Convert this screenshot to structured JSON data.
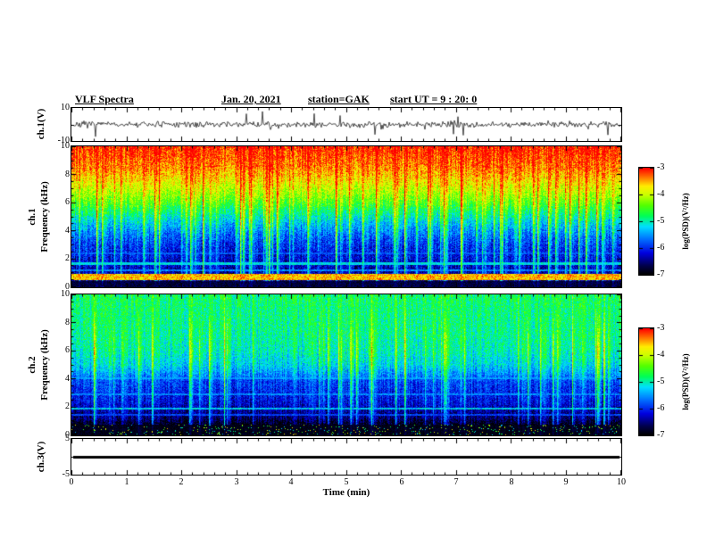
{
  "header": {
    "title": "VLF Spectra",
    "date": "Jan. 20, 2021",
    "station": "station=GAK",
    "start_ut": "start UT =  9 : 20: 0"
  },
  "xaxis": {
    "label": "Time (min)",
    "min": 0,
    "max": 10,
    "ticks": [
      0,
      1,
      2,
      3,
      4,
      5,
      6,
      7,
      8,
      9,
      10
    ],
    "minor_step": 0.2
  },
  "colormap": {
    "range": [
      -7,
      -3
    ],
    "stops": [
      [
        0.0,
        "#000000"
      ],
      [
        0.08,
        "#00004a"
      ],
      [
        0.2,
        "#0000e0"
      ],
      [
        0.33,
        "#0070ff"
      ],
      [
        0.45,
        "#00e0ff"
      ],
      [
        0.55,
        "#00ff55"
      ],
      [
        0.65,
        "#55ff00"
      ],
      [
        0.75,
        "#ccff00"
      ],
      [
        0.83,
        "#ffee00"
      ],
      [
        0.9,
        "#ff8800"
      ],
      [
        1.0,
        "#ff0000"
      ]
    ]
  },
  "colorbars": [
    {
      "label": "log(PSD)(V²/Hz)",
      "ticks": [
        -3,
        -4,
        -5,
        -6,
        -7
      ]
    },
    {
      "label": "log(PSD)(V²/Hz)",
      "ticks": [
        -3,
        -4,
        -5,
        -6,
        -7
      ]
    }
  ],
  "chart_data": [
    {
      "type": "line",
      "name": "ch1-waveform",
      "ylabel": "ch.1(V)",
      "ylim": [
        -10,
        10
      ],
      "yticks": [
        10,
        -10
      ],
      "xlim": [
        0,
        10
      ],
      "seed": 7,
      "amp": 1.6,
      "spike": 7,
      "spike_prob": 0.03,
      "description": "Noisy broadband time series around 0 V, ~±3 V with impulsive spikes"
    },
    {
      "type": "heatmap",
      "name": "ch1-spectrogram",
      "ylabel_lines": [
        "ch.1",
        "Frequency (kHz)"
      ],
      "ylim": [
        0,
        10
      ],
      "fmax": 10,
      "yticks": [
        10,
        8,
        6,
        4,
        2,
        0
      ],
      "xlim": [
        0,
        10
      ],
      "seed": 101,
      "noise": 0.8,
      "streak_prob": 0.12,
      "streak_max": 1.5,
      "streak_fade": 5,
      "profile": [
        [
          0,
          -6.8
        ],
        [
          0.4,
          -6.6
        ],
        [
          1.0,
          -6.4
        ],
        [
          1.5,
          -6.3
        ],
        [
          2,
          -6.2
        ],
        [
          3,
          -6.0
        ],
        [
          4,
          -5.6
        ],
        [
          4.8,
          -5.2
        ],
        [
          5.5,
          -4.8
        ],
        [
          6,
          -4.5
        ],
        [
          6.8,
          -4.1
        ],
        [
          7.5,
          -3.8
        ],
        [
          8.5,
          -3.4
        ],
        [
          9.5,
          -3.2
        ],
        [
          10,
          -3.1
        ]
      ],
      "lines": [
        {
          "f": 1.65,
          "w": 0.07,
          "v": -5.2,
          "j": 0.6
        },
        {
          "f": 1.2,
          "w": 0.06,
          "v": -5.6,
          "j": 0.6
        },
        {
          "f": 2.4,
          "w": 0.05,
          "v": -5.8,
          "j": 0.5
        }
      ],
      "bands": [
        {
          "f0": 0.45,
          "f1": 0.95,
          "v": -3.6,
          "j": 0.9
        },
        {
          "f0": 0.0,
          "f1": 0.4,
          "v": -6.75,
          "j": 0.4
        }
      ],
      "description": "High PSD (red, ~-3) above 6 kHz, green mid band 4-6 kHz, dark blue 1-4 kHz with vertical sferic streaks, intense band near 0.5-0.9 kHz, black below 0.4 kHz"
    },
    {
      "type": "heatmap",
      "name": "ch2-spectrogram",
      "ylabel_lines": [
        "ch.2",
        "Frequency (kHz)"
      ],
      "ylim": [
        0,
        10
      ],
      "fmax": 10,
      "yticks": [
        10,
        8,
        6,
        4,
        2,
        0
      ],
      "xlim": [
        0,
        10
      ],
      "seed": 202,
      "noise": 0.7,
      "streak_prob": 0.1,
      "streak_max": 1.3,
      "streak_fade": 6,
      "profile": [
        [
          0,
          -7
        ],
        [
          0.8,
          -6.9
        ],
        [
          1.2,
          -6.6
        ],
        [
          1.8,
          -6.4
        ],
        [
          2.2,
          -6.2
        ],
        [
          3,
          -6.05
        ],
        [
          3.8,
          -5.9
        ],
        [
          4.3,
          -5.6
        ],
        [
          5,
          -5.25
        ],
        [
          6,
          -5.05
        ],
        [
          7,
          -4.95
        ],
        [
          8,
          -4.9
        ],
        [
          9,
          -4.85
        ],
        [
          10,
          -4.8
        ]
      ],
      "lines": [
        {
          "f": 1.9,
          "w": 0.07,
          "v": -5.3,
          "j": 0.8
        },
        {
          "f": 2.9,
          "w": 0.06,
          "v": -5.6,
          "j": 0.6
        },
        {
          "f": 1.45,
          "w": 0.05,
          "v": -5.9,
          "j": 0.5
        },
        {
          "f": 4.05,
          "w": 0.05,
          "v": -5.5,
          "j": 0.4
        }
      ],
      "bands": [
        {
          "f0": 0.0,
          "f1": 0.75,
          "v": -6.9,
          "j": 0.25,
          "speckle_prob": 0.06,
          "speckle_v": [
            -5.5,
            -3.5
          ]
        }
      ],
      "description": "Green (~-5) above 5 kHz with vertical streaks, blue/dark 1.5-4 kHz with horizontal interference lines, near-black below 0.8 kHz with speckle"
    },
    {
      "type": "line",
      "name": "ch3-flat",
      "ylabel": "ch.3(V)",
      "ylim": [
        -5,
        5
      ],
      "yticks": [
        5,
        -5
      ],
      "xlim": [
        0,
        10
      ],
      "flat_value": 0,
      "description": "Flat line at 0 V (no signal on channel 3)"
    }
  ]
}
